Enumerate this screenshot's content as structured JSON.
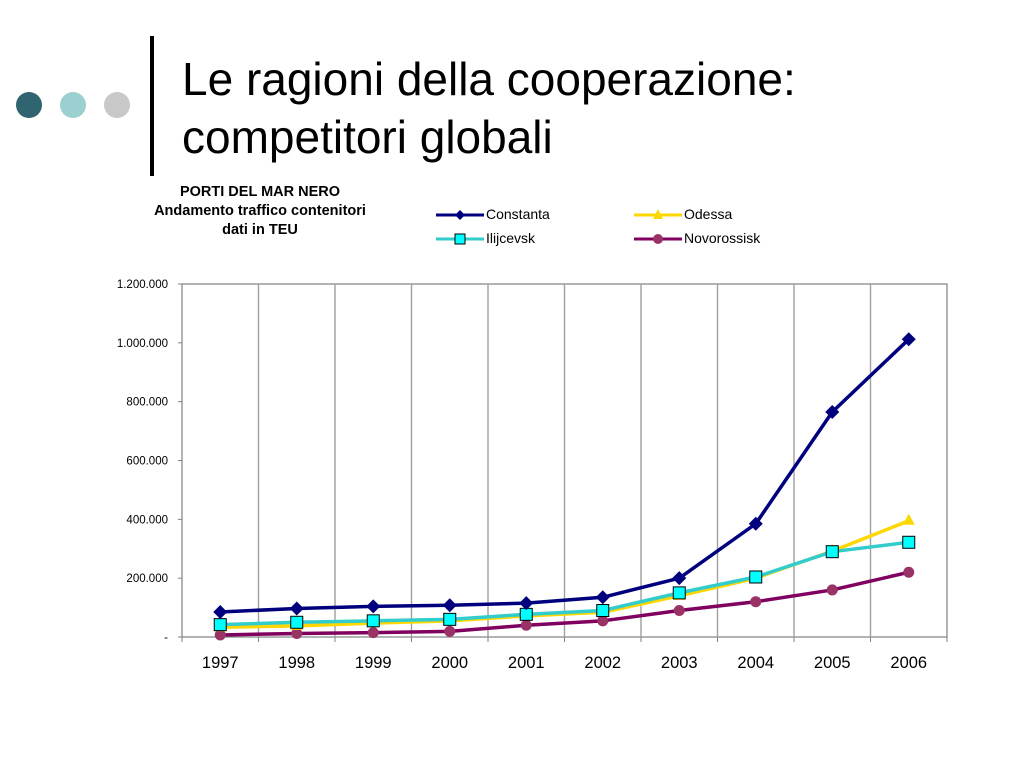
{
  "slide": {
    "title_line1": "Le ragioni della cooperazione:",
    "title_line2": "competitori globali",
    "dot_colors": [
      "#2f6470",
      "#9ccfd0",
      "#c8c8c8"
    ]
  },
  "chart_data": {
    "type": "line",
    "title_lines": [
      "PORTI DEL MAR NERO",
      "Andamento traffico contenitori",
      "dati in TEU"
    ],
    "xlabel": "",
    "ylabel": "",
    "categories": [
      "1997",
      "1998",
      "1999",
      "2000",
      "2001",
      "2002",
      "2003",
      "2004",
      "2005",
      "2006"
    ],
    "ylim": [
      0,
      1200000
    ],
    "yticks": [
      0,
      200000,
      400000,
      600000,
      800000,
      1000000,
      1200000
    ],
    "ytick_labels": [
      "-",
      "200.000",
      "400.000",
      "600.000",
      "800.000",
      "1.000.000",
      "1.200.000"
    ],
    "grid": "vertical",
    "legend_position": "top",
    "series": [
      {
        "name": "Constanta",
        "color": "#00007f",
        "marker": "diamond",
        "values": [
          85000,
          97000,
          104000,
          108000,
          115000,
          135000,
          200000,
          385000,
          765000,
          1012000
        ]
      },
      {
        "name": "Odessa",
        "color": "#ffd700",
        "marker": "triangle",
        "values": [
          33000,
          38000,
          47000,
          55000,
          72000,
          84000,
          140000,
          200000,
          292000,
          395000
        ]
      },
      {
        "name": "Ilijcevsk",
        "color": "#33cccc",
        "marker": "square",
        "values": [
          42000,
          50000,
          55000,
          60000,
          77000,
          90000,
          150000,
          204000,
          290000,
          322000
        ]
      },
      {
        "name": "Novorossisk",
        "color": "#800060",
        "marker": "circle",
        "values": [
          7000,
          12000,
          15000,
          19000,
          40000,
          55000,
          90000,
          120000,
          160000,
          220000
        ]
      }
    ]
  }
}
